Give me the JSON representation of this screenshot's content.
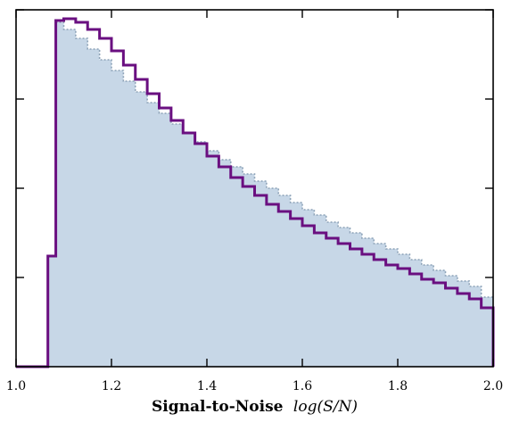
{
  "chart_data": {
    "type": "area",
    "title": "",
    "xlabel": "Signal-to-Noise",
    "xlabel_math": "log(S/N)",
    "ylabel": "",
    "xlim": [
      1.0,
      2.0
    ],
    "ylim": [
      0,
      1.0
    ],
    "x_ticks": [
      1.0,
      1.2,
      1.4,
      1.6,
      1.8,
      2.0
    ],
    "x_tick_labels": [
      "1.0",
      "1.2",
      "1.4",
      "1.6",
      "1.8",
      "2.0"
    ],
    "y_ticks": [
      0.25,
      0.5,
      0.75,
      1.0
    ],
    "y_tick_labels_visible": false,
    "grid": false,
    "legend": "none",
    "colors": {
      "fill": "#c7d7e7",
      "fill_edge": "#8ea3b8",
      "step_line": "#6a0f80"
    },
    "series": [
      {
        "kind": "filled-histogram",
        "bin_edges": [
          1.0,
          1.0667,
          1.0833,
          1.1,
          1.125,
          1.15,
          1.175,
          1.2,
          1.225,
          1.25,
          1.275,
          1.3,
          1.325,
          1.35,
          1.375,
          1.4,
          1.425,
          1.45,
          1.475,
          1.5,
          1.525,
          1.55,
          1.575,
          1.6,
          1.625,
          1.65,
          1.675,
          1.7,
          1.725,
          1.75,
          1.775,
          1.8,
          1.825,
          1.85,
          1.875,
          1.9,
          1.925,
          1.95,
          1.975,
          2.0
        ],
        "values": [
          0.0,
          0.31,
          0.965,
          0.945,
          0.92,
          0.89,
          0.86,
          0.83,
          0.8,
          0.77,
          0.74,
          0.71,
          0.68,
          0.655,
          0.63,
          0.605,
          0.58,
          0.56,
          0.54,
          0.52,
          0.5,
          0.48,
          0.46,
          0.44,
          0.425,
          0.405,
          0.39,
          0.375,
          0.36,
          0.345,
          0.33,
          0.315,
          0.3,
          0.285,
          0.27,
          0.255,
          0.24,
          0.225,
          0.195
        ]
      },
      {
        "kind": "step-histogram",
        "bin_edges": [
          1.0,
          1.0667,
          1.0833,
          1.1,
          1.125,
          1.15,
          1.175,
          1.2,
          1.225,
          1.25,
          1.275,
          1.3,
          1.325,
          1.35,
          1.375,
          1.4,
          1.425,
          1.45,
          1.475,
          1.5,
          1.525,
          1.55,
          1.575,
          1.6,
          1.625,
          1.65,
          1.675,
          1.7,
          1.725,
          1.75,
          1.775,
          1.8,
          1.825,
          1.85,
          1.875,
          1.9,
          1.925,
          1.95,
          1.975,
          2.0
        ],
        "values": [
          0.0,
          0.31,
          0.97,
          0.975,
          0.965,
          0.945,
          0.92,
          0.885,
          0.845,
          0.805,
          0.765,
          0.725,
          0.69,
          0.655,
          0.625,
          0.59,
          0.56,
          0.53,
          0.505,
          0.48,
          0.455,
          0.435,
          0.415,
          0.395,
          0.375,
          0.36,
          0.345,
          0.33,
          0.315,
          0.3,
          0.285,
          0.275,
          0.26,
          0.245,
          0.235,
          0.22,
          0.205,
          0.19,
          0.165
        ]
      }
    ]
  }
}
